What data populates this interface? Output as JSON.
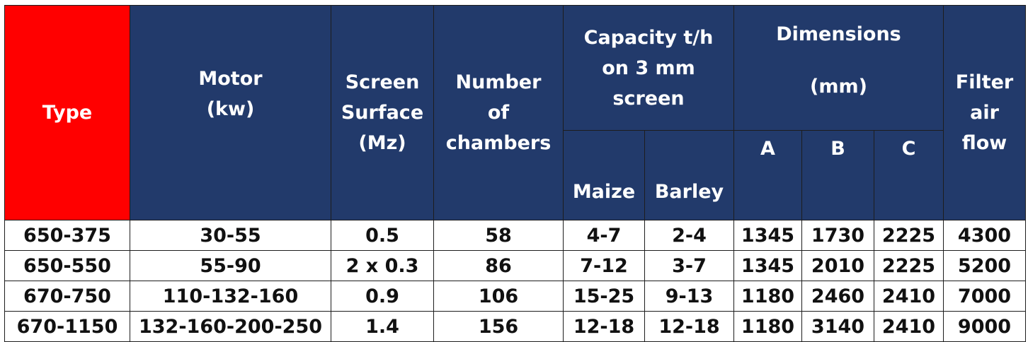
{
  "table": {
    "headers": {
      "type": "Type",
      "motor": [
        "Motor",
        "(kw)"
      ],
      "screen_surface": [
        "Screen",
        "Surface",
        "(Mz)"
      ],
      "chambers": [
        "Number",
        "of",
        "chambers"
      ],
      "capacity": [
        "Capacity t/h",
        "on 3 mm",
        "screen"
      ],
      "capacity_sub": [
        "Maize",
        "Barley"
      ],
      "dimensions": [
        "Dimensions",
        "(mm)"
      ],
      "dimensions_sub": [
        "A",
        "B",
        "C"
      ],
      "filter": [
        "Filter",
        "air",
        "flow"
      ]
    },
    "rows": [
      [
        "650-375",
        "30-55",
        "0.5",
        "58",
        "4-7",
        "2-4",
        "1345",
        "1730",
        "2225",
        "4300"
      ],
      [
        "650-550",
        "55-90",
        "2 x 0.3",
        "86",
        "7-12",
        "3-7",
        "1345",
        "2010",
        "2225",
        "5200"
      ],
      [
        "670-750",
        "110-132-160",
        "0.9",
        "106",
        "15-25",
        "9-13",
        "1180",
        "2460",
        "2410",
        "7000"
      ],
      [
        "670-1150",
        "132-160-200-250",
        "1.4",
        "156",
        "12-18",
        "12-18",
        "1180",
        "3140",
        "2410",
        "9000"
      ]
    ]
  },
  "colors": {
    "header_bg": "#223a6b",
    "type_header_bg": "#ff0000",
    "header_text": "#ffffff",
    "body_text": "#111111"
  }
}
